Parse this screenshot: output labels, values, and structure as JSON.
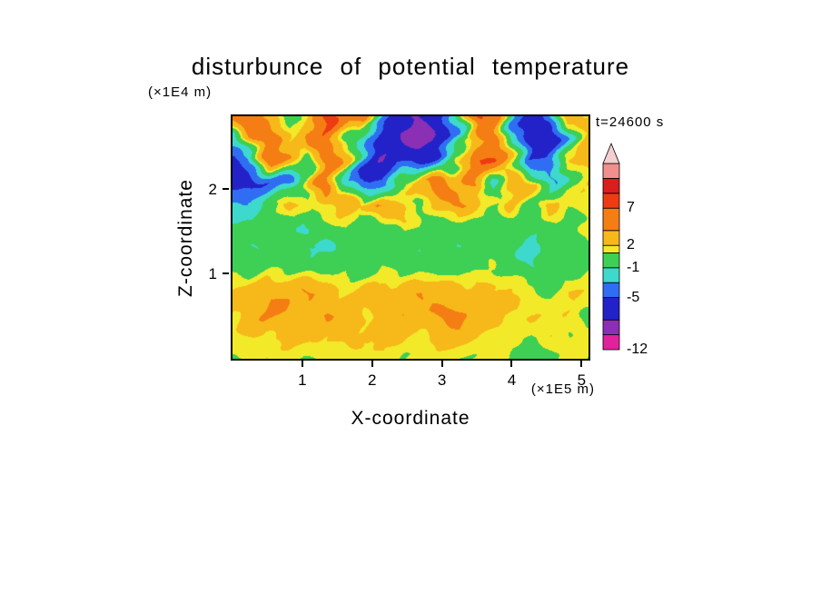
{
  "chart_data": {
    "type": "heatmap",
    "title": "disturbunce of potential temperature",
    "xlabel": "X-coordinate",
    "ylabel": "Z-coordinate",
    "x_unit": "(×1E5 m)",
    "y_unit": "(×1E4 m)",
    "annotation": "t=24600 s",
    "x_ticks": [
      1,
      2,
      3,
      4,
      5
    ],
    "y_ticks": [
      1,
      2
    ],
    "x_range": [
      0,
      5.1
    ],
    "y_range": [
      0,
      2.85
    ],
    "grid_rows_order": "top-to-bottom",
    "grid_note": "disturbance values (same units as colorbar levels), coarse grid estimated from the filled-contour field",
    "grid": [
      [
        5,
        7,
        3,
        1,
        2,
        8,
        4,
        5,
        -2,
        -7,
        -8,
        -6,
        -1,
        7,
        5,
        -3,
        -6,
        -5,
        3,
        2
      ],
      [
        -2,
        4,
        6,
        2,
        5,
        7,
        1,
        -3,
        -6,
        -8,
        -9,
        -7,
        -4,
        2,
        6,
        -2,
        -7,
        -6,
        -2,
        3
      ],
      [
        -5,
        -4,
        5,
        4,
        0,
        6,
        3,
        -4,
        -9,
        -5,
        -6,
        -6,
        2,
        7,
        6,
        1,
        -5,
        -4,
        2,
        3
      ],
      [
        -6,
        -5,
        -5,
        -4,
        0,
        6,
        -2,
        -5,
        -4,
        1,
        4,
        6,
        3,
        5,
        -2,
        3,
        2,
        -3,
        1,
        2
      ],
      [
        -3,
        -2,
        0,
        3,
        1,
        2,
        4,
        2,
        5,
        3,
        0,
        2,
        5,
        2,
        1,
        3,
        0,
        2,
        1,
        2
      ],
      [
        0,
        -1,
        1,
        0,
        -1,
        0,
        1,
        -1,
        0,
        2,
        1,
        0,
        -1,
        0,
        1,
        0,
        -1,
        1,
        0,
        1
      ],
      [
        0,
        -1,
        -1,
        0,
        -1,
        -1,
        0,
        -1,
        -1,
        0,
        -1,
        0,
        -1,
        -1,
        0,
        -1,
        -1,
        0,
        -1,
        0
      ],
      [
        1,
        0,
        1,
        1,
        0,
        1,
        1,
        0,
        1,
        0,
        1,
        1,
        0,
        1,
        1,
        0,
        -1,
        0,
        1,
        1
      ],
      [
        2,
        3,
        4,
        3,
        4,
        3,
        2,
        3,
        2,
        3,
        4,
        3,
        3,
        4,
        2,
        2,
        1,
        1,
        2,
        2
      ],
      [
        2,
        3,
        5,
        4,
        3,
        4,
        3,
        2,
        3,
        4,
        3,
        4,
        5,
        3,
        3,
        2,
        2,
        1,
        2,
        1
      ],
      [
        1,
        2,
        2,
        3,
        2,
        2,
        3,
        2,
        2,
        3,
        2,
        2,
        3,
        2,
        2,
        1,
        1,
        2,
        1,
        1
      ],
      [
        1,
        1,
        2,
        1,
        1,
        2,
        1,
        1,
        2,
        1,
        1,
        2,
        1,
        1,
        1,
        1,
        1,
        1,
        1,
        1
      ]
    ],
    "colorbar": {
      "labels": [
        "7",
        "2",
        "-1",
        "-5",
        "-12"
      ],
      "label_values": [
        7,
        2,
        -1,
        -5,
        -12
      ],
      "levels": [
        -12,
        -10,
        -8,
        -5,
        -3,
        -1,
        1,
        2,
        4,
        7,
        9,
        11,
        13
      ],
      "colors": [
        "#e2219c",
        "#8b2fb4",
        "#2222c8",
        "#2f6ef2",
        "#3cd9cc",
        "#3ecf55",
        "#f2ea28",
        "#f7b919",
        "#f57e14",
        "#ee3c12",
        "#da1d1d",
        "#f08f8d"
      ],
      "over_color": "#f3cfcf"
    }
  }
}
